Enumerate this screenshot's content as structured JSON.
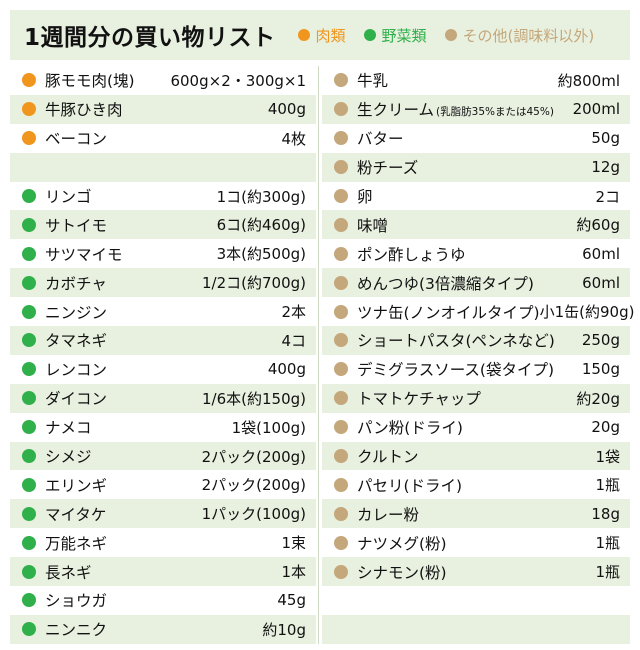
{
  "title": "1週間分の買い物リスト",
  "colors": {
    "meat": "#f0961e",
    "vegetable": "#2fb04a",
    "other": "#c4a77a"
  },
  "legend": [
    {
      "label": "肉類",
      "cat": "meat"
    },
    {
      "label": "野菜類",
      "cat": "vegetable"
    },
    {
      "label": "その他(調味料以外)",
      "cat": "other"
    }
  ],
  "left": [
    {
      "cat": "meat",
      "name": "豚モモ肉(塊)",
      "qty": "600g×2・300g×1"
    },
    {
      "cat": "meat",
      "name": "牛豚ひき肉",
      "qty": "400g"
    },
    {
      "cat": "meat",
      "name": "ベーコン",
      "qty": "4枚"
    },
    {
      "cat": "",
      "name": "",
      "qty": ""
    },
    {
      "cat": "vegetable",
      "name": "リンゴ",
      "qty": "1コ(約300g)"
    },
    {
      "cat": "vegetable",
      "name": "サトイモ",
      "qty": "6コ(約460g)"
    },
    {
      "cat": "vegetable",
      "name": "サツマイモ",
      "qty": "3本(約500g)"
    },
    {
      "cat": "vegetable",
      "name": "カボチャ",
      "qty": "1/2コ(約700g)"
    },
    {
      "cat": "vegetable",
      "name": "ニンジン",
      "qty": "2本"
    },
    {
      "cat": "vegetable",
      "name": "タマネギ",
      "qty": "4コ"
    },
    {
      "cat": "vegetable",
      "name": "レンコン",
      "qty": "400g"
    },
    {
      "cat": "vegetable",
      "name": "ダイコン",
      "qty": "1/6本(約150g)"
    },
    {
      "cat": "vegetable",
      "name": "ナメコ",
      "qty": "1袋(100g)"
    },
    {
      "cat": "vegetable",
      "name": "シメジ",
      "qty": "2パック(200g)"
    },
    {
      "cat": "vegetable",
      "name": "エリンギ",
      "qty": "2パック(200g)"
    },
    {
      "cat": "vegetable",
      "name": "マイタケ",
      "qty": "1パック(100g)"
    },
    {
      "cat": "vegetable",
      "name": "万能ネギ",
      "qty": "1束"
    },
    {
      "cat": "vegetable",
      "name": "長ネギ",
      "qty": "1本"
    },
    {
      "cat": "vegetable",
      "name": "ショウガ",
      "qty": "45g"
    },
    {
      "cat": "vegetable",
      "name": "ニンニク",
      "qty": "約10g"
    }
  ],
  "right": [
    {
      "cat": "other",
      "name": "牛乳",
      "qty": "約800ml"
    },
    {
      "cat": "other",
      "name": "生クリーム",
      "note": "(乳脂肪35%または45%)",
      "qty": "200ml"
    },
    {
      "cat": "other",
      "name": "バター",
      "qty": "50g"
    },
    {
      "cat": "other",
      "name": "粉チーズ",
      "qty": "12g"
    },
    {
      "cat": "other",
      "name": "卵",
      "qty": "2コ"
    },
    {
      "cat": "other",
      "name": "味噌",
      "qty": "約60g"
    },
    {
      "cat": "other",
      "name": "ポン酢しょうゆ",
      "qty": "60ml"
    },
    {
      "cat": "other",
      "name": "めんつゆ(3倍濃縮タイプ)",
      "qty": "60ml"
    },
    {
      "cat": "other",
      "name": "ツナ缶(ノンオイルタイプ)",
      "qty": "小1缶(約90g)"
    },
    {
      "cat": "other",
      "name": "ショートパスタ(ペンネなど)",
      "qty": "250g"
    },
    {
      "cat": "other",
      "name": "デミグラスソース(袋タイプ)",
      "qty": "150g"
    },
    {
      "cat": "other",
      "name": "トマトケチャップ",
      "qty": "約20g"
    },
    {
      "cat": "other",
      "name": "パン粉(ドライ)",
      "qty": "20g"
    },
    {
      "cat": "other",
      "name": "クルトン",
      "qty": "1袋"
    },
    {
      "cat": "other",
      "name": "パセリ(ドライ)",
      "qty": "1瓶"
    },
    {
      "cat": "other",
      "name": "カレー粉",
      "qty": "18g"
    },
    {
      "cat": "other",
      "name": "ナツメグ(粉)",
      "qty": "1瓶"
    },
    {
      "cat": "other",
      "name": "シナモン(粉)",
      "qty": "1瓶"
    },
    {
      "cat": "",
      "name": "",
      "qty": ""
    },
    {
      "cat": "",
      "name": "",
      "qty": ""
    }
  ]
}
